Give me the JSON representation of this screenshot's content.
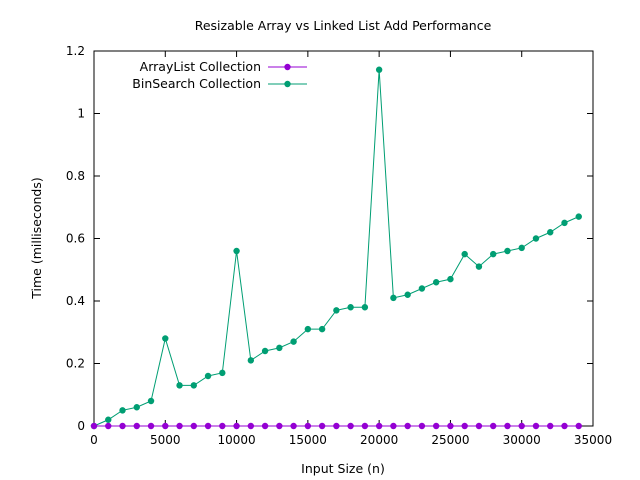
{
  "chart_data": {
    "type": "line",
    "title": "Resizable Array vs Linked List Add Performance",
    "xlabel": "Input Size (n)",
    "ylabel": "Time (milliseconds)",
    "xlim": [
      0,
      35000
    ],
    "ylim": [
      0,
      1.2
    ],
    "x_ticks": [
      0,
      5000,
      10000,
      15000,
      20000,
      25000,
      30000,
      35000
    ],
    "y_ticks": [
      0,
      0.2,
      0.4,
      0.6,
      0.8,
      1,
      1.2
    ],
    "grid": false,
    "legend_position": "top-left",
    "x": [
      0,
      1000,
      2000,
      3000,
      4000,
      5000,
      6000,
      7000,
      8000,
      9000,
      10000,
      11000,
      12000,
      13000,
      14000,
      15000,
      16000,
      17000,
      18000,
      19000,
      20000,
      21000,
      22000,
      23000,
      24000,
      25000,
      26000,
      27000,
      28000,
      29000,
      30000,
      31000,
      32000,
      33000,
      34000
    ],
    "series": [
      {
        "name": "ArrayList Collection",
        "color": "#9400d3",
        "values": [
          0,
          0,
          0,
          0,
          0,
          0,
          0,
          0,
          0,
          0,
          0,
          0,
          0,
          0,
          0,
          0,
          0,
          0,
          0,
          0,
          0,
          0,
          0,
          0,
          0,
          0,
          0,
          0,
          0,
          0,
          0,
          0,
          0,
          0,
          0
        ]
      },
      {
        "name": "BinSearch Collection",
        "color": "#009e73",
        "values": [
          0,
          0.02,
          0.05,
          0.06,
          0.08,
          0.28,
          0.13,
          0.13,
          0.16,
          0.17,
          0.56,
          0.21,
          0.24,
          0.25,
          0.27,
          0.31,
          0.31,
          0.37,
          0.38,
          0.38,
          1.14,
          0.41,
          0.42,
          0.44,
          0.46,
          0.47,
          0.55,
          0.51,
          0.55,
          0.56,
          0.57,
          0.6,
          0.62,
          0.65,
          0.67
        ]
      }
    ]
  }
}
